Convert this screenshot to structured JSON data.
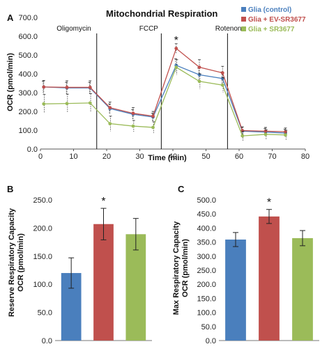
{
  "panel_labels": {
    "a": "A",
    "b": "B",
    "c": "C"
  },
  "colors": {
    "control": "#4a7fbd",
    "ev": "#c0504d",
    "sr": "#9bbb59"
  },
  "chart_data": [
    {
      "id": "A",
      "type": "line",
      "title": "Mitochondrial Respiration",
      "xlabel": "Time (min)",
      "ylabel": "OCR (pmol/min)",
      "xlim": [
        0,
        80
      ],
      "ylim": [
        0,
        700
      ],
      "x_ticks": [
        "0",
        "10",
        "20",
        "30",
        "40",
        "50",
        "60",
        "70",
        "80"
      ],
      "y_ticks": [
        "0.0",
        "100.0",
        "200.0",
        "300.0",
        "400.0",
        "500.0",
        "600.0",
        "700.0"
      ],
      "x": [
        1,
        8,
        15,
        21,
        28,
        34,
        41,
        48,
        55,
        61,
        68,
        74
      ],
      "series": [
        {
          "name": "Glia (control)",
          "color": "#4a7fbd",
          "values": [
            330,
            325,
            325,
            215,
            185,
            170,
            445,
            395,
            375,
            95,
            90,
            85
          ],
          "errors": [
            30,
            30,
            30,
            25,
            25,
            20,
            35,
            35,
            35,
            20,
            20,
            20
          ]
        },
        {
          "name": "Glia + EV-SR3677",
          "color": "#c0504d",
          "values": [
            330,
            328,
            328,
            220,
            190,
            175,
            535,
            435,
            405,
            98,
            95,
            92
          ],
          "errors": [
            35,
            35,
            35,
            30,
            30,
            25,
            25,
            40,
            35,
            20,
            20,
            20
          ]
        },
        {
          "name": "Glia + SR3677",
          "color": "#9bbb59",
          "values": [
            240,
            242,
            245,
            135,
            122,
            115,
            435,
            360,
            340,
            70,
            78,
            75
          ],
          "errors": [
            50,
            50,
            50,
            40,
            30,
            30,
            40,
            40,
            40,
            25,
            25,
            25
          ]
        }
      ],
      "injections": [
        {
          "label": "Oligomycin",
          "x": 17
        },
        {
          "label": "FCCP",
          "x": 36.5
        },
        {
          "label": "Rotenone",
          "x": 56.5
        }
      ],
      "annotations": [
        {
          "text": "*",
          "x": 41,
          "y": 582
        }
      ],
      "legend_position": "top-right"
    },
    {
      "id": "B",
      "type": "bar",
      "ylabel_lines": [
        "Reserve  Respiratory Capacity",
        "OCR (pmol/min)"
      ],
      "ylim": [
        0,
        250
      ],
      "y_ticks": [
        "0.0",
        "50.0",
        "100.0",
        "150.0",
        "200.0",
        "250.0"
      ],
      "categories": [
        "Glia (control)",
        "Glia + EV-SR3677",
        "Glia + SR3677"
      ],
      "values": [
        120,
        207,
        189
      ],
      "errors": [
        27,
        28,
        28
      ],
      "colors": [
        "#4a7fbd",
        "#c0504d",
        "#9bbb59"
      ],
      "annotations": [
        {
          "text": "*",
          "category": 1
        }
      ]
    },
    {
      "id": "C",
      "type": "bar",
      "ylabel_lines": [
        "Max  Respiratory Capacity",
        "OCR (pmol/min)"
      ],
      "ylim": [
        0,
        500
      ],
      "y_ticks": [
        "0.0",
        "50.0",
        "100.0",
        "150.0",
        "200.0",
        "250.0",
        "300.0",
        "350.0",
        "400.0",
        "450.0",
        "500.0"
      ],
      "categories": [
        "Glia (control)",
        "Glia + EV-SR3677",
        "Glia + SR3677"
      ],
      "values": [
        359,
        441,
        364
      ],
      "errors": [
        25,
        25,
        27
      ],
      "colors": [
        "#4a7fbd",
        "#c0504d",
        "#9bbb59"
      ],
      "annotations": [
        {
          "text": "*",
          "category": 1
        }
      ]
    }
  ]
}
